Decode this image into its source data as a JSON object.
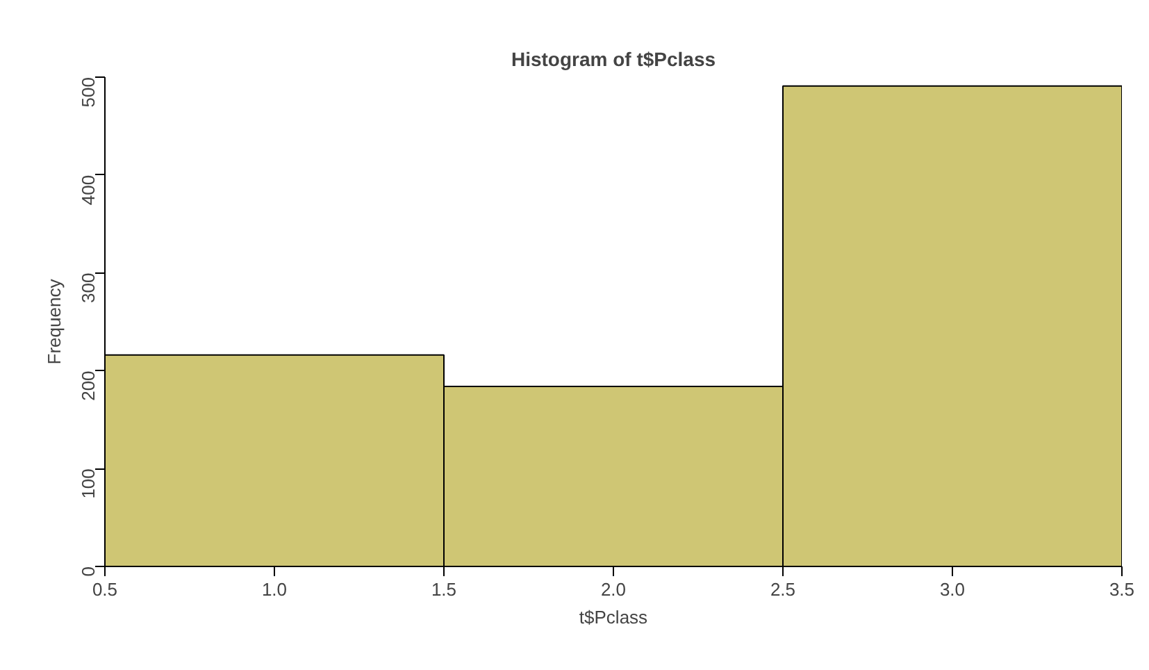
{
  "chart_data": {
    "type": "histogram",
    "title": "Histogram of t$Pclass",
    "xlabel": "t$Pclass",
    "ylabel": "Frequency",
    "bins": [
      0.5,
      1.5,
      2.5,
      3.5
    ],
    "values": [
      216,
      184,
      491
    ],
    "color": "#cfc674",
    "xlim": [
      0.5,
      3.5
    ],
    "ylim": [
      0,
      500
    ],
    "xticks": [
      {
        "value": 0.5,
        "label": "0.5"
      },
      {
        "value": 1.0,
        "label": "1.0"
      },
      {
        "value": 1.5,
        "label": "1.5"
      },
      {
        "value": 2.0,
        "label": "2.0"
      },
      {
        "value": 2.5,
        "label": "2.5"
      },
      {
        "value": 3.0,
        "label": "3.0"
      },
      {
        "value": 3.5,
        "label": "3.5"
      }
    ],
    "yticks": [
      0,
      100,
      200,
      300,
      400,
      500
    ],
    "grid": false
  }
}
